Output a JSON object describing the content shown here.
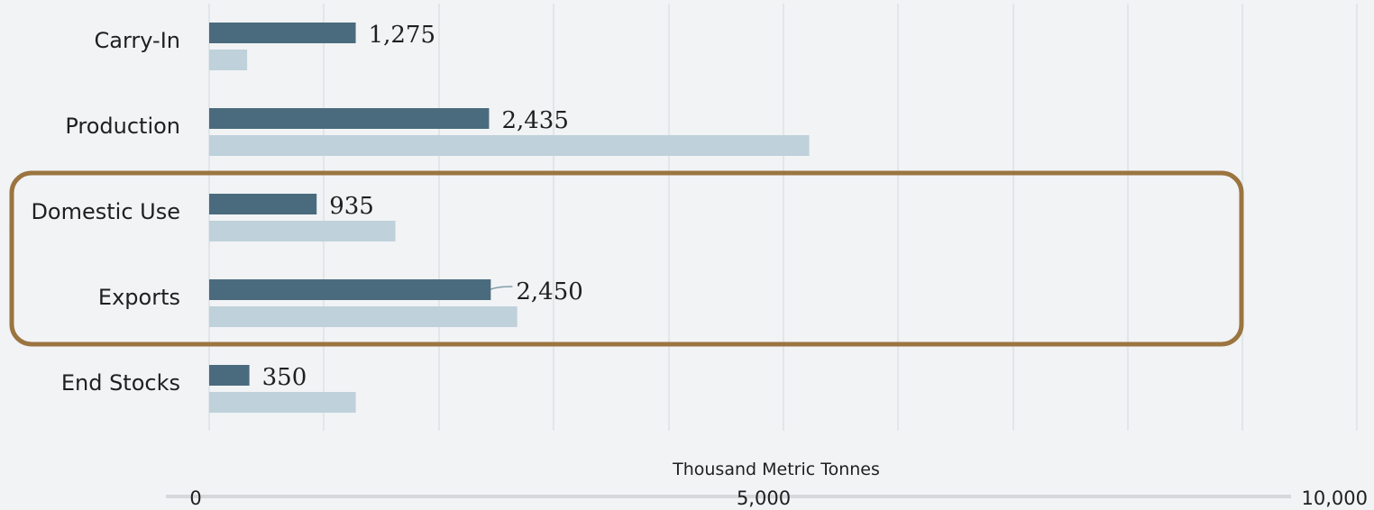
{
  "colors": {
    "background": "#f1f3f5",
    "series_dark": "#4a6b7d",
    "series_light": "#bfd1da",
    "grid": "#dde2e6",
    "highlight_box": "#9b7440"
  },
  "chart_data": {
    "type": "bar",
    "orientation": "horizontal",
    "categories": [
      "Carry-In",
      "Production",
      "Domestic Use",
      "Exports",
      "End Stocks"
    ],
    "series": [
      {
        "values": [
          1275,
          2435,
          935,
          2450,
          350
        ],
        "color": "#4a6b7d"
      },
      {
        "values": [
          330,
          5220,
          1620,
          2680,
          1275
        ],
        "color": "#bfd1da"
      }
    ],
    "data_labels": [
      "1,275",
      "2,435",
      "935",
      "2,450",
      "350"
    ],
    "xlabel": "Thousand Metric Tonnes",
    "xlim": [
      0,
      10000
    ],
    "x_ticks": [
      "0",
      "5,000",
      "10,000"
    ],
    "grid": true,
    "highlight": {
      "categories": [
        "Domestic Use",
        "Exports"
      ]
    }
  }
}
